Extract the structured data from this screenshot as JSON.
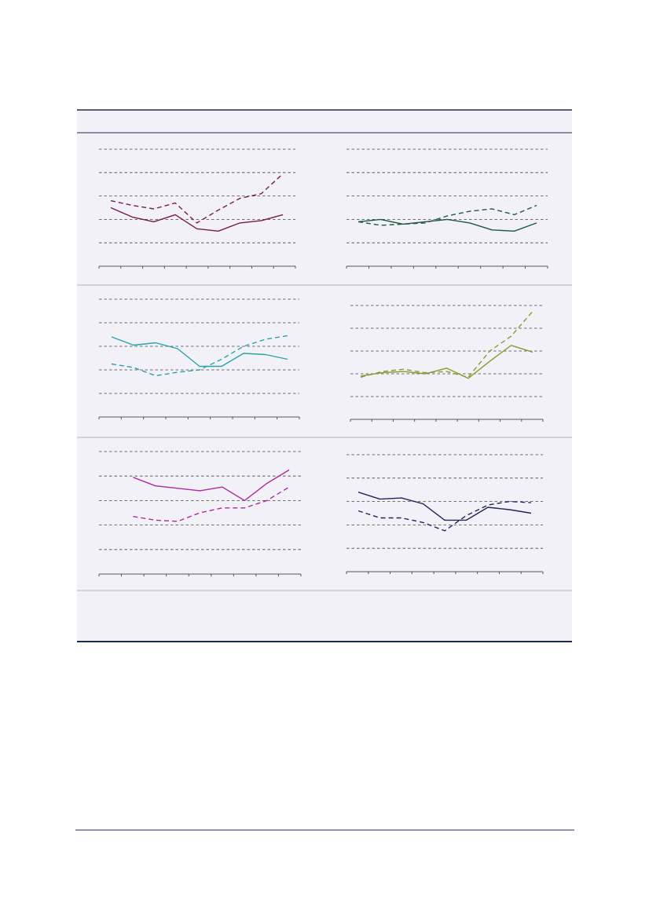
{
  "colors": {
    "panel_bg": "#f2f1f8",
    "rule": "#1f2a4a",
    "separator": "#b5b4c8",
    "grid": "#444444",
    "axis": "#555555"
  },
  "chart_data": [
    {
      "type": "line",
      "color": "#7a1a4c",
      "ylim": [
        0,
        5
      ],
      "x": [
        1,
        2,
        3,
        4,
        5,
        6,
        7,
        8,
        9
      ],
      "grid": "dashed-horizontal",
      "series": [
        {
          "style": "solid",
          "values": [
            2.5,
            2.1,
            1.9,
            2.2,
            1.6,
            1.5,
            1.85,
            1.95,
            2.2
          ]
        },
        {
          "style": "dashed",
          "values": [
            2.8,
            2.6,
            2.45,
            2.7,
            1.85,
            2.4,
            2.9,
            3.1,
            3.95
          ]
        }
      ]
    },
    {
      "type": "line",
      "color": "#1d5a3f",
      "ylim": [
        0,
        5
      ],
      "x": [
        1,
        2,
        3,
        4,
        5,
        6,
        7,
        8,
        9
      ],
      "grid": "dashed-horizontal",
      "series": [
        {
          "style": "solid",
          "values": [
            1.9,
            2.0,
            1.8,
            1.9,
            2.0,
            1.85,
            1.55,
            1.5,
            1.85
          ]
        },
        {
          "style": "dashed",
          "values": [
            1.9,
            1.75,
            1.8,
            1.85,
            2.15,
            2.35,
            2.45,
            2.2,
            2.6
          ]
        }
      ]
    },
    {
      "type": "line",
      "color": "#2aa3a8",
      "ylim": [
        0,
        5
      ],
      "x": [
        1,
        2,
        3,
        4,
        5,
        6,
        7,
        8,
        9
      ],
      "grid": "dashed-horizontal",
      "series": [
        {
          "style": "solid",
          "values": [
            3.4,
            3.05,
            3.15,
            2.9,
            2.15,
            2.15,
            2.7,
            2.65,
            2.45
          ]
        },
        {
          "style": "dashed",
          "values": [
            2.25,
            2.1,
            1.75,
            1.9,
            2.0,
            2.45,
            3.0,
            3.3,
            3.45
          ]
        }
      ]
    },
    {
      "type": "line",
      "color": "#8a9a30",
      "ylim": [
        0,
        5
      ],
      "x": [
        1,
        2,
        3,
        4,
        5,
        6,
        7,
        8,
        9
      ],
      "grid": "dashed-horizontal",
      "series": [
        {
          "style": "solid",
          "values": [
            1.9,
            2.05,
            2.1,
            2.0,
            2.25,
            1.8,
            2.55,
            3.25,
            2.95
          ]
        },
        {
          "style": "dashed",
          "values": [
            1.85,
            2.1,
            2.2,
            2.05,
            2.1,
            1.85,
            3.0,
            3.65,
            4.75
          ]
        }
      ]
    },
    {
      "type": "line",
      "color": "#b02aa0",
      "ylim": [
        0,
        5
      ],
      "x": [
        1,
        2,
        3,
        4,
        5,
        6,
        7,
        8,
        9
      ],
      "grid": "dashed-horizontal",
      "series": [
        {
          "style": "solid",
          "values": [
            null,
            3.95,
            3.6,
            3.5,
            3.4,
            3.55,
            3.0,
            3.7,
            4.25
          ]
        },
        {
          "style": "dashed",
          "values": [
            null,
            2.35,
            2.2,
            2.15,
            2.5,
            2.7,
            2.7,
            3.0,
            3.55
          ]
        }
      ]
    },
    {
      "type": "line",
      "color": "#22265a",
      "ylim": [
        0,
        5
      ],
      "x": [
        1,
        2,
        3,
        4,
        5,
        6,
        7,
        8,
        9
      ],
      "grid": "dashed-horizontal",
      "series": [
        {
          "style": "solid",
          "values": [
            3.4,
            3.1,
            3.15,
            2.9,
            2.2,
            2.2,
            2.75,
            2.65,
            2.5
          ]
        },
        {
          "style": "dashed",
          "values": [
            2.6,
            2.3,
            2.3,
            2.1,
            1.75,
            2.4,
            2.85,
            3.0,
            2.95
          ]
        }
      ]
    }
  ]
}
